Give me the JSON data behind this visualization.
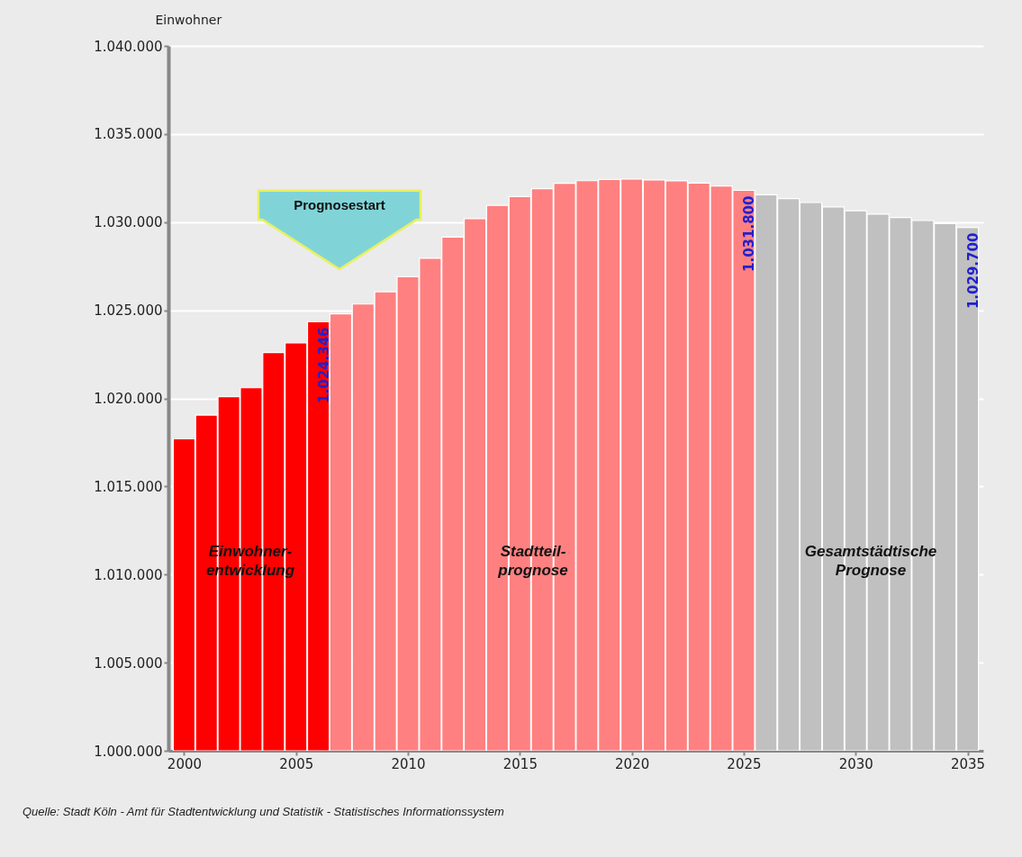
{
  "chart_data": {
    "type": "bar",
    "ylabel": "Einwohner",
    "x": [
      2000,
      2001,
      2002,
      2003,
      2004,
      2005,
      2006,
      2007,
      2008,
      2009,
      2010,
      2011,
      2012,
      2013,
      2014,
      2015,
      2016,
      2017,
      2018,
      2019,
      2020,
      2021,
      2022,
      2023,
      2024,
      2025,
      2026,
      2027,
      2028,
      2029,
      2030,
      2031,
      2032,
      2033,
      2034,
      2035
    ],
    "series": [
      {
        "color": "#ff0000",
        "values": [
          1017700,
          1019050,
          1020100,
          1020600,
          1022600,
          1023150,
          1024346,
          null,
          null,
          null,
          null,
          null,
          null,
          null,
          null,
          null,
          null,
          null,
          null,
          null,
          null,
          null,
          null,
          null,
          null,
          null,
          null,
          null,
          null,
          null,
          null,
          null,
          null,
          null,
          null,
          null
        ],
        "value_labels": [
          null,
          null,
          null,
          null,
          null,
          null,
          "1.024.346",
          null,
          null,
          null,
          null,
          null,
          null,
          null,
          null,
          null,
          null,
          null,
          null,
          null,
          null,
          null,
          null,
          null,
          null,
          null,
          null,
          null,
          null,
          null,
          null,
          null,
          null,
          null,
          null,
          null
        ]
      },
      {
        "color": "#ff8080",
        "values": [
          null,
          null,
          null,
          null,
          null,
          null,
          null,
          1024800,
          1025350,
          1026050,
          1026900,
          1027950,
          1029150,
          1030200,
          1030950,
          1031450,
          1031900,
          1032200,
          1032350,
          1032420,
          1032450,
          1032390,
          1032340,
          1032220,
          1032050,
          1031800,
          null,
          null,
          null,
          null,
          null,
          null,
          null,
          null,
          null,
          null
        ],
        "value_labels": [
          null,
          null,
          null,
          null,
          null,
          null,
          null,
          null,
          null,
          null,
          null,
          null,
          null,
          null,
          null,
          null,
          null,
          null,
          null,
          null,
          null,
          null,
          null,
          null,
          null,
          "1.031.800",
          null,
          null,
          null,
          null,
          null,
          null,
          null,
          null,
          null,
          null
        ]
      },
      {
        "color": "#c0c0c0",
        "values": [
          null,
          null,
          null,
          null,
          null,
          null,
          null,
          null,
          null,
          null,
          null,
          null,
          null,
          null,
          null,
          null,
          null,
          null,
          null,
          null,
          null,
          null,
          null,
          null,
          null,
          null,
          1031550,
          1031330,
          1031110,
          1030860,
          1030650,
          1030450,
          1030260,
          1030090,
          1029920,
          1029700
        ],
        "value_labels": [
          null,
          null,
          null,
          null,
          null,
          null,
          null,
          null,
          null,
          null,
          null,
          null,
          null,
          null,
          null,
          null,
          null,
          null,
          null,
          null,
          null,
          null,
          null,
          null,
          null,
          null,
          null,
          null,
          null,
          null,
          null,
          null,
          null,
          null,
          null,
          "1.029.700"
        ]
      }
    ],
    "xlim": [
      1999.5,
      2035.5
    ],
    "xticks": [
      2000,
      2005,
      2010,
      2015,
      2020,
      2025,
      2030,
      2035
    ],
    "ylim": [
      1000000,
      1040000
    ],
    "yticks": [
      {
        "value": 1000000,
        "label": "1.000.000"
      },
      {
        "value": 1005000,
        "label": "1.005.000"
      },
      {
        "value": 1010000,
        "label": "1.010.000"
      },
      {
        "value": 1015000,
        "label": "1.015.000"
      },
      {
        "value": 1020000,
        "label": "1.020.000"
      },
      {
        "value": 1025000,
        "label": "1.025.000"
      },
      {
        "value": 1030000,
        "label": "1.030.000"
      },
      {
        "value": 1035000,
        "label": "1.035.000"
      },
      {
        "value": 1040000,
        "label": "1.040.000"
      }
    ],
    "grid": "y",
    "legend": false,
    "annotations": [
      "Prognosestart",
      "Einwohner-\nentwicklung",
      "Stadtteil-\nprognose",
      "Gesamtstädtische\nPrognose",
      "Quelle: Stadt Köln - Amt für Stadtentwicklung und Statistik - Statistisches Informationssystem"
    ]
  }
}
